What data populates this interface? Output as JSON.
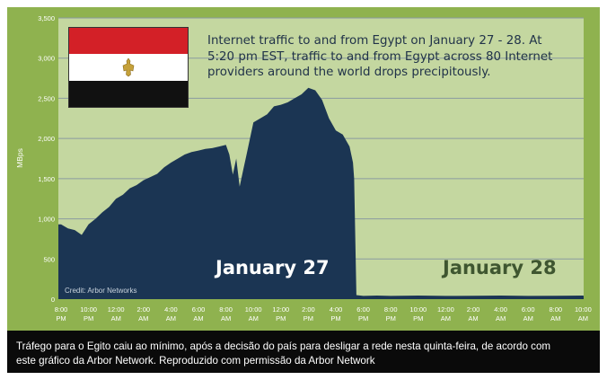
{
  "chart_data": {
    "type": "area",
    "ylabel": "MBps",
    "ylim": [
      0,
      3500
    ],
    "yticks": [
      0,
      500,
      1000,
      1500,
      2000,
      2500,
      3000,
      3500
    ],
    "ytick_labels": [
      "0",
      "500",
      "1,000",
      "1,500",
      "2,000",
      "2,500",
      "3,000",
      "3,500"
    ],
    "xtick_labels": [
      [
        "8:00",
        "PM"
      ],
      [
        "10:00",
        "PM"
      ],
      [
        "12:00",
        "AM"
      ],
      [
        "2:00",
        "AM"
      ],
      [
        "4:00",
        "AM"
      ],
      [
        "6:00",
        "AM"
      ],
      [
        "8:00",
        "AM"
      ],
      [
        "10:00",
        "AM"
      ],
      [
        "12:00",
        "PM"
      ],
      [
        "2:00",
        "PM"
      ],
      [
        "4:00",
        "PM"
      ],
      [
        "6:00",
        "PM"
      ],
      [
        "8:00",
        "PM"
      ],
      [
        "10:00",
        "PM"
      ],
      [
        "12:00",
        "AM"
      ],
      [
        "2:00",
        "AM"
      ],
      [
        "4:00",
        "AM"
      ],
      [
        "6:00",
        "AM"
      ],
      [
        "8:00",
        "AM"
      ],
      [
        "10:00",
        "AM"
      ]
    ],
    "grid": true,
    "series": [
      {
        "x": [
          "8:00 PM",
          "8:30 PM",
          "9:00 PM",
          "9:30 PM",
          "10:00 PM",
          "10:30 PM",
          "11:00 PM",
          "11:30 PM",
          "12:00 AM",
          "12:30 AM",
          "1:00 AM",
          "1:30 AM",
          "2:00 AM",
          "2:30 AM",
          "3:00 AM",
          "3:30 AM",
          "4:00 AM",
          "4:30 AM",
          "5:00 AM",
          "5:30 AM",
          "6:00 AM",
          "6:30 AM",
          "7:00 AM",
          "7:30 AM",
          "8:00 AM",
          "8:15 AM",
          "8:30 AM",
          "8:45 AM",
          "9:00 AM",
          "9:15 AM",
          "9:30 AM",
          "9:45 AM",
          "10:00 AM",
          "10:30 AM",
          "11:00 AM",
          "11:30 AM",
          "12:00 PM",
          "12:30 PM",
          "1:00 PM",
          "1:30 PM",
          "2:00 PM",
          "2:30 PM",
          "3:00 PM",
          "3:30 PM",
          "4:00 PM",
          "4:30 PM",
          "5:00 PM",
          "5:15 PM",
          "5:20 PM",
          "5:30 PM",
          "6:00 PM",
          "7:00 PM",
          "8:00 PM",
          "10:00 PM",
          "12:00 AM",
          "2:00 AM",
          "4:00 AM",
          "6:00 AM",
          "8:00 AM",
          "10:00 AM",
          "10:30 AM"
        ],
        "values": [
          930,
          880,
          860,
          800,
          930,
          1000,
          1080,
          1150,
          1250,
          1300,
          1380,
          1420,
          1480,
          1520,
          1560,
          1640,
          1700,
          1750,
          1800,
          1830,
          1850,
          1870,
          1880,
          1900,
          1920,
          1800,
          1550,
          1750,
          1400,
          1600,
          1800,
          2000,
          2200,
          2250,
          2300,
          2400,
          2420,
          2450,
          2500,
          2550,
          2630,
          2600,
          2480,
          2250,
          2100,
          2050,
          1900,
          1700,
          1500,
          50,
          40,
          45,
          40,
          45,
          40,
          42,
          45,
          40,
          42,
          45,
          40
        ]
      }
    ]
  },
  "annotation_lines": [
    "Internet traffic to and from Egypt on January 27 - 28. At",
    "5:20 pm EST, traffic to and from Egypt across 80 Internet",
    "providers around the world  drops precipitously."
  ],
  "day_labels": [
    "January 27",
    "January 28"
  ],
  "credit": "Credit: Arbor Networks",
  "caption_lines": [
    "Tráfego para o Egito caiu ao mínimo, após a decisão do país para desligar a rede nesta quinta-feira, de acordo com",
    "este gráfico da Arbor Network. Reproduzido com permissão da Arbor Network"
  ],
  "colors": {
    "outer_frame": "#8fb24f",
    "plot_background": "#c4d7a0",
    "area_fill": "#1b3553",
    "gridline": "#8a9aa0",
    "axis_text": "#ffffff",
    "annotation_text": "#213349",
    "flag_red": "#d32027",
    "flag_black": "#111111",
    "eagle": "#c5a13a"
  }
}
